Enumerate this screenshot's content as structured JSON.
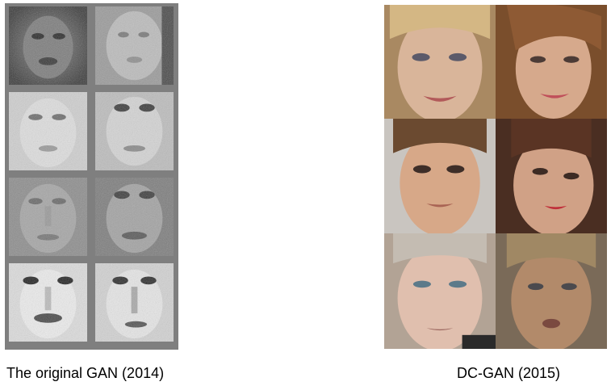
{
  "captions": {
    "gan": "The original GAN (2014)",
    "dcgan": "DC-GAN (2015)"
  },
  "panels": {
    "gan": {
      "rows": 4,
      "cols": 2,
      "style": "grayscale-noisy-faces"
    },
    "dcgan": {
      "rows": 3,
      "cols": 2,
      "style": "color-faces"
    }
  },
  "colors": {
    "gan_border": "#7f7f7f",
    "background": "#ffffff"
  }
}
